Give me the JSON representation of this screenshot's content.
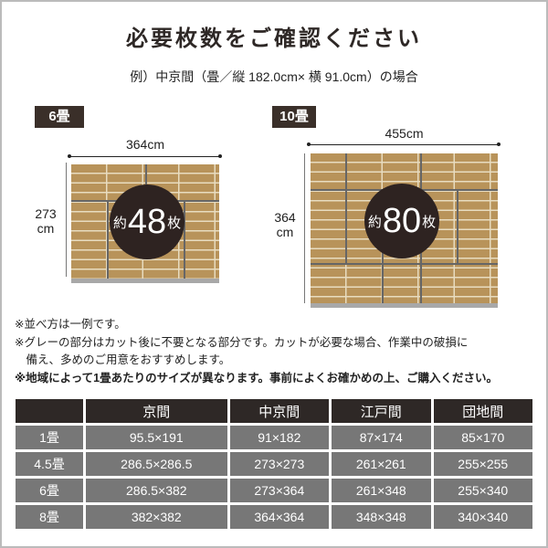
{
  "title": "必要枚数をご確認ください",
  "example": "例）中京間（畳／縦 182.0cm× 横 91.0cm）の場合",
  "diagrams": [
    {
      "label": "6畳",
      "width": "364cm",
      "height_value": "273",
      "height_unit": "cm",
      "prefix": "約",
      "count": "48",
      "suffix": "枚"
    },
    {
      "label": "10畳",
      "width": "455cm",
      "height_value": "364",
      "height_unit": "cm",
      "prefix": "約",
      "count": "80",
      "suffix": "枚"
    }
  ],
  "notes": [
    "※並べ方は一例です。",
    "※グレーの部分はカット後に不要となる部分です。カットが必要な場合、作業中の破損に",
    "　備え、多めのご用意をおすすめします。",
    "※地域によって1畳あたりのサイズが異なります。事前によくお確かめの上、ご購入ください。"
  ],
  "table": {
    "headers": [
      "",
      "京間",
      "中京間",
      "江戸間",
      "団地間"
    ],
    "rows": [
      [
        "1畳",
        "95.5×191",
        "91×182",
        "87×174",
        "85×170"
      ],
      [
        "4.5畳",
        "286.5×286.5",
        "273×273",
        "261×261",
        "255×255"
      ],
      [
        "6畳",
        "286.5×382",
        "273×364",
        "261×348",
        "255×340"
      ],
      [
        "8畳",
        "382×382",
        "364×364",
        "348×348",
        "340×340"
      ]
    ]
  },
  "colors": {
    "wood": "#b8935a",
    "dark": "#2e2826",
    "cell": "#777777",
    "waste": "#a8a8a8"
  }
}
